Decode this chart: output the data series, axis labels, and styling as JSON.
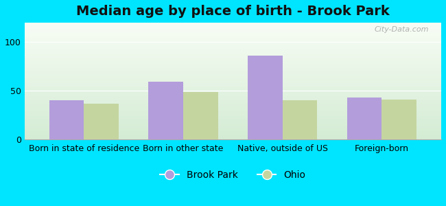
{
  "title": "Median age by place of birth - Brook Park",
  "categories": [
    "Born in state of residence",
    "Born in other state",
    "Native, outside of US",
    "Foreign-born"
  ],
  "brook_park_values": [
    40,
    59,
    86,
    43
  ],
  "ohio_values": [
    37,
    49,
    40,
    41
  ],
  "brook_park_color": "#b39ddb",
  "ohio_color": "#c5d5a0",
  "background_color": "#00e5ff",
  "ylim": [
    0,
    120
  ],
  "yticks": [
    0,
    50,
    100
  ],
  "bar_width": 0.35,
  "legend_labels": [
    "Brook Park",
    "Ohio"
  ],
  "title_fontsize": 14,
  "tick_fontsize": 9,
  "legend_fontsize": 10
}
